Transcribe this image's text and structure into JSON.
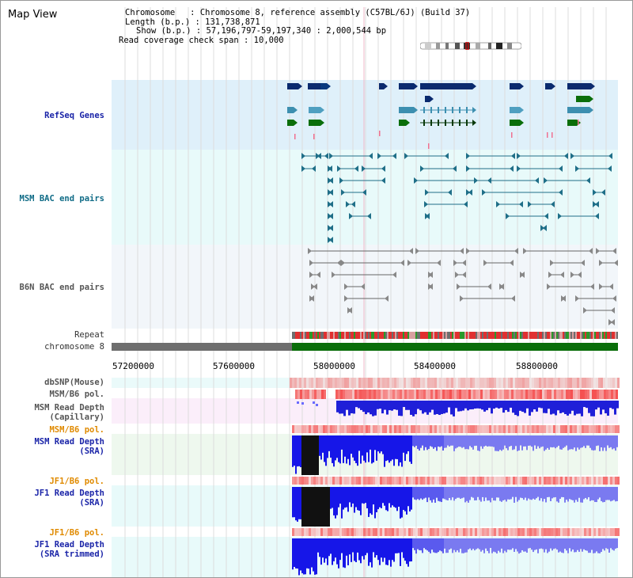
{
  "window": {
    "title": "Map View"
  },
  "header": {
    "chromosome_line": "Chromosome   : Chromosome 8, reference assembly (C57BL/6J) (Build 37)",
    "length_line": "Length (b.p.) : 131,738,871",
    "show_line": "Show (b.p.) : 57,196,797-59,197,340 : 2,000,544 bp",
    "coverage_line": "Read coverage check span : 10,000"
  },
  "tracks": {
    "refseq": "RefSeq Genes",
    "msm_bac": "MSM BAC end pairs",
    "b6n_bac": "B6N BAC end pairs",
    "repeat": "Repeat",
    "chromosome": "chromosome 8",
    "dbsnp": "dbSNP(Mouse)",
    "msm_b6_pol": "MSM/B6 pol.",
    "msm_depth_cap_1": "MSM Read Depth",
    "msm_depth_cap_2": "(Capillary)",
    "msm_b6_pol_2": "MSM/B6 pol.",
    "msm_depth_sra_1": "MSM Read Depth",
    "msm_depth_sra_2": "(SRA)",
    "jf1_b6_pol": "JF1/B6 pol.",
    "jf1_depth_sra_1": "JF1 Read Depth",
    "jf1_depth_sra_2": "(SRA)",
    "jf1_b6_pol_2": "JF1/B6 pol.",
    "jf1_depth_trim_1": "JF1 Read Depth",
    "jf1_depth_trim_2": "(SRA trimmed)"
  },
  "axis": {
    "ticks": [
      "57200000",
      "57600000",
      "58000000",
      "58400000",
      "58800000"
    ]
  },
  "colors": {
    "refseq_bg": "#dff0fa",
    "bac_bg": "#e8fafa",
    "b6n_bg": "#f2f6fa",
    "chromosome_gray": "#6e6e6e",
    "chromosome_green": "#0a6e0a",
    "depth_blue": "#1a1af0",
    "pol_red": "#f04040"
  }
}
